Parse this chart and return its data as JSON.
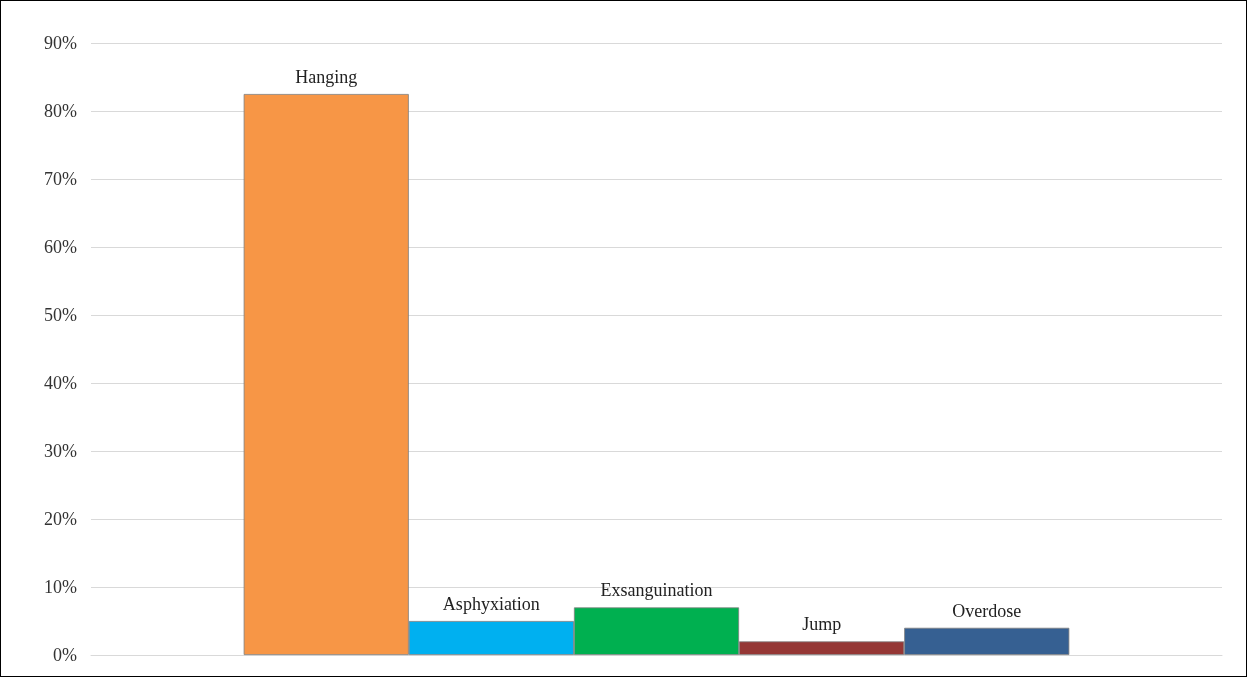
{
  "chart_data": {
    "type": "bar",
    "categories": [
      null
    ],
    "series": [
      {
        "name": "Hanging",
        "color": "#f79646",
        "values": [
          82.5
        ]
      },
      {
        "name": "Asphyxiation",
        "color": "#00b0f0",
        "values": [
          5
        ]
      },
      {
        "name": "Exsanguination",
        "color": "#00b050",
        "values": [
          7
        ]
      },
      {
        "name": "Jump",
        "color": "#953735",
        "values": [
          2
        ]
      },
      {
        "name": "Overdose",
        "color": "#366092",
        "values": [
          4
        ]
      }
    ],
    "ylim": [
      0,
      90
    ],
    "yticks": [
      {
        "value": 0,
        "label": "0%"
      },
      {
        "value": 10,
        "label": "10%"
      },
      {
        "value": 20,
        "label": "20%"
      },
      {
        "value": 30,
        "label": "30%"
      },
      {
        "value": 40,
        "label": "40%"
      },
      {
        "value": 50,
        "label": "50%"
      },
      {
        "value": 60,
        "label": "60%"
      },
      {
        "value": 70,
        "label": "70%"
      },
      {
        "value": 80,
        "label": "80%"
      },
      {
        "value": 90,
        "label": "90%"
      }
    ],
    "grid": "y",
    "legend": false,
    "tick_labels": "y"
  }
}
